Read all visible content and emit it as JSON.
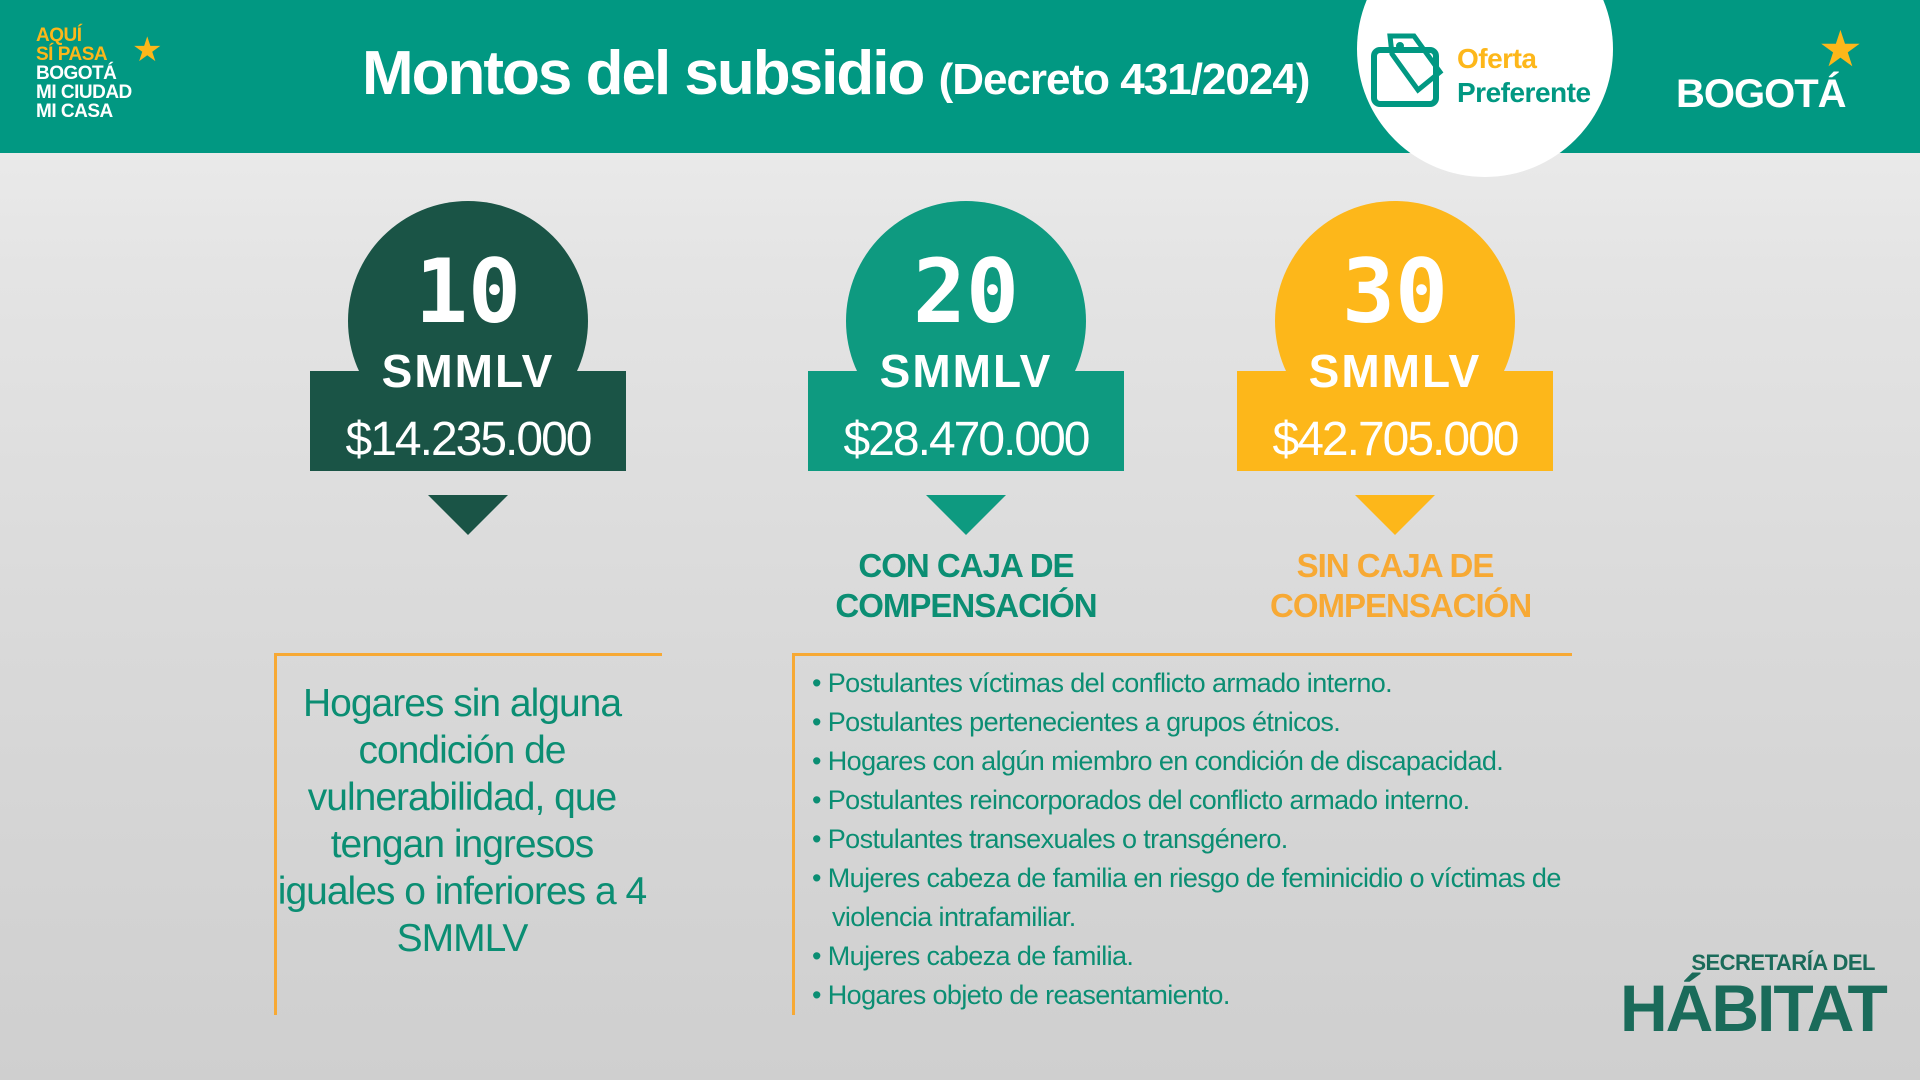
{
  "header": {
    "title": "Montos del subsidio",
    "subtitle": "(Decreto 431/2024)",
    "left_logo": [
      "AQUÍ",
      "SÍ PASA",
      "BOGOTÁ",
      "MI CIUDAD",
      "MI CASA"
    ],
    "badge": {
      "line1": "Oferta",
      "line2": "Preferente",
      "icon": "price-tag-icon"
    },
    "right_logo": "BOGOTÁ"
  },
  "colors": {
    "header": "#019882",
    "dark_green": "#1a5446",
    "teal": "#0e9a80",
    "yellow": "#fdb71a",
    "text": "#0b8e73",
    "border": "#f7a934"
  },
  "tiers": [
    {
      "number": "10",
      "unit": "SMMLV",
      "amount": "$14.235.000",
      "label": ""
    },
    {
      "number": "20",
      "unit": "SMMLV",
      "amount": "$28.470.000",
      "label": "CON CAJA DE COMPENSACIÓN"
    },
    {
      "number": "30",
      "unit": "SMMLV",
      "amount": "$42.705.000",
      "label": "SIN CAJA DE COMPENSACIÓN"
    }
  ],
  "left_box": {
    "text": "Hogares sin alguna condición de vulnerabilidad, que tengan ingresos iguales o inferiores a 4 SMMLV"
  },
  "right_box": {
    "items": [
      "Postulantes víctimas del conflicto armado interno.",
      "Postulantes pertenecientes a grupos étnicos.",
      "Hogares con algún miembro en condición de discapacidad.",
      "Postulantes reincorporados del conflicto armado interno.",
      "Postulantes transexuales o transgénero.",
      "Mujeres cabeza de familia en riesgo de feminicidio o víctimas de violencia intrafamiliar.",
      "Mujeres cabeza de familia.",
      "Hogares objeto de reasentamiento."
    ]
  },
  "footer_logo": {
    "line1": "SECRETARÍA DEL",
    "line2": "HÁBITAT"
  }
}
